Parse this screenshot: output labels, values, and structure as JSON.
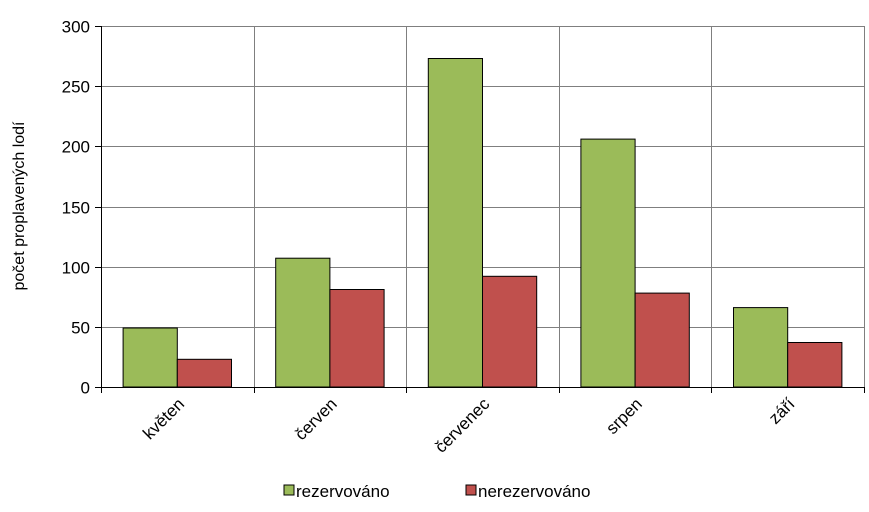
{
  "chart_data": {
    "type": "bar",
    "categories": [
      "květen",
      "červen",
      "červenec",
      "srpen",
      "září"
    ],
    "series": [
      {
        "name": "rezervováno",
        "values": [
          49,
          107,
          273,
          206,
          66
        ],
        "color": "#9BBB59"
      },
      {
        "name": "nerezervováno",
        "values": [
          23,
          81,
          92,
          78,
          37
        ],
        "color": "#C0504D"
      }
    ],
    "xlabel": "",
    "ylabel": "počet proplavených lodí",
    "ylim": [
      0,
      300
    ],
    "yticks": [
      0,
      50,
      100,
      150,
      200,
      250,
      300
    ],
    "grid": {
      "horizontal": true,
      "vertical": true
    },
    "legend_position": "bottom",
    "gridline_color": "#7F7F7F",
    "bar_border_color": "#000000"
  }
}
